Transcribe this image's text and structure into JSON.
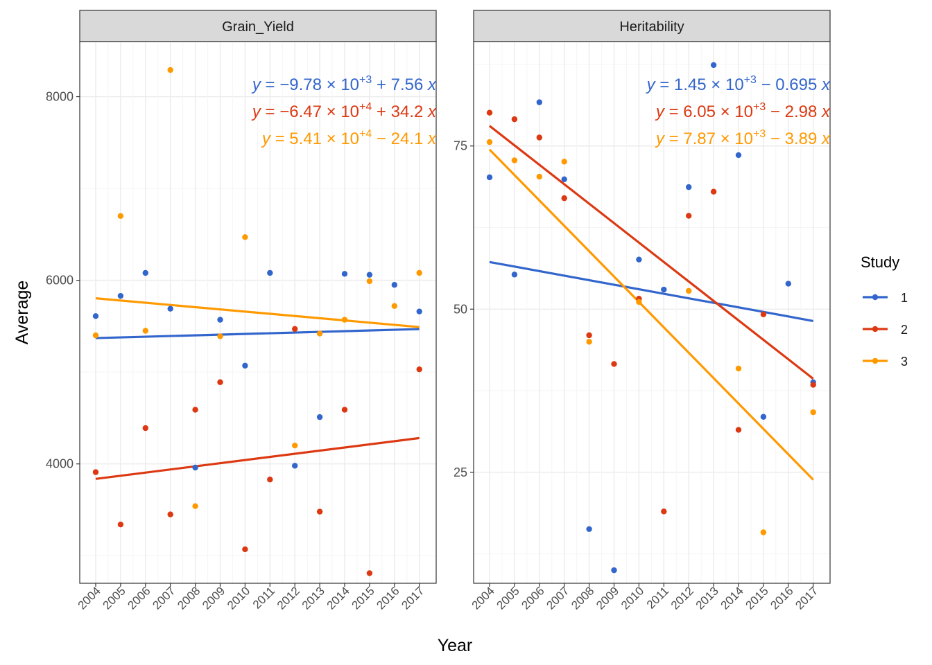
{
  "chart_data": [
    {
      "type": "scatter",
      "facet": "Grain_Yield",
      "years": [
        2004,
        2005,
        2006,
        2007,
        2008,
        2009,
        2010,
        2011,
        2012,
        2013,
        2014,
        2015,
        2016,
        2017
      ],
      "ylim": [
        2700,
        8600
      ],
      "yticks": [
        4000,
        6000,
        8000
      ],
      "series": [
        {
          "name": "1",
          "color": "#3366CC",
          "points": [
            [
              2004,
              5610
            ],
            [
              2005,
              5830
            ],
            [
              2006,
              6080
            ],
            [
              2007,
              5690
            ],
            [
              2008,
              3960
            ],
            [
              2009,
              5570
            ],
            [
              2010,
              5070
            ],
            [
              2011,
              6080
            ],
            [
              2012,
              3980
            ],
            [
              2013,
              4510
            ],
            [
              2014,
              6070
            ],
            [
              2015,
              6060
            ],
            [
              2016,
              5950
            ],
            [
              2017,
              5660
            ]
          ],
          "fit": {
            "intercept": -9780,
            "slope": 7.56
          },
          "equation": {
            "y": "y",
            "eq": " = ",
            "neg": "−",
            "coef": "9.78",
            "times": " × 10",
            "exp": "+3",
            "op": " + ",
            "slope": "7.56 ",
            "x": "x"
          }
        },
        {
          "name": "2",
          "color": "#DC3912",
          "points": [
            [
              2004,
              3910
            ],
            [
              2005,
              3340
            ],
            [
              2006,
              4390
            ],
            [
              2007,
              3450
            ],
            [
              2008,
              4590
            ],
            [
              2009,
              4890
            ],
            [
              2010,
              3070
            ],
            [
              2011,
              3830
            ],
            [
              2012,
              5470
            ],
            [
              2013,
              3480
            ],
            [
              2014,
              4590
            ],
            [
              2015,
              2810
            ],
            [
              2017,
              5030
            ]
          ],
          "fit": {
            "intercept": -64700,
            "slope": 34.2
          },
          "equation": {
            "y": "y",
            "eq": " = ",
            "neg": "−",
            "coef": "6.47",
            "times": " × 10",
            "exp": "+4",
            "op": " + ",
            "slope": "34.2 ",
            "x": "x"
          }
        },
        {
          "name": "3",
          "color": "#FF9900",
          "points": [
            [
              2004,
              5400
            ],
            [
              2005,
              6700
            ],
            [
              2006,
              5450
            ],
            [
              2007,
              8290
            ],
            [
              2008,
              3540
            ],
            [
              2009,
              5390
            ],
            [
              2010,
              6470
            ],
            [
              2012,
              4200
            ],
            [
              2013,
              5420
            ],
            [
              2014,
              5570
            ],
            [
              2015,
              5990
            ],
            [
              2016,
              5720
            ],
            [
              2017,
              6080
            ]
          ],
          "fit": {
            "intercept": 54100,
            "slope": -24.1
          },
          "equation": {
            "y": "y",
            "eq": " = ",
            "neg": "",
            "coef": "5.41",
            "times": " × 10",
            "exp": "+4",
            "op": " − ",
            "slope": "24.1 ",
            "x": "x"
          }
        }
      ]
    },
    {
      "type": "scatter",
      "facet": "Heritability",
      "years": [
        2004,
        2005,
        2006,
        2007,
        2008,
        2009,
        2010,
        2011,
        2012,
        2013,
        2014,
        2015,
        2016,
        2017
      ],
      "ylim": [
        8,
        91
      ],
      "yticks": [
        25,
        50,
        75
      ],
      "series": [
        {
          "name": "1",
          "color": "#3366CC",
          "points": [
            [
              2004,
              70.2
            ],
            [
              2005,
              55.3
            ],
            [
              2006,
              81.7
            ],
            [
              2007,
              69.9
            ],
            [
              2008,
              16.3
            ],
            [
              2009,
              10.0
            ],
            [
              2010,
              57.6
            ],
            [
              2011,
              53.0
            ],
            [
              2012,
              68.7
            ],
            [
              2013,
              87.4
            ],
            [
              2014,
              73.6
            ],
            [
              2015,
              33.5
            ],
            [
              2016,
              53.9
            ],
            [
              2017,
              38.8
            ]
          ],
          "fit": {
            "intercept": 1450,
            "slope": -0.695
          },
          "equation": {
            "y": "y",
            "eq": " = ",
            "neg": "",
            "coef": "1.45",
            "times": " × 10",
            "exp": "+3",
            "op": " − ",
            "slope": "0.695 ",
            "x": "x"
          }
        },
        {
          "name": "2",
          "color": "#DC3912",
          "points": [
            [
              2004,
              80.1
            ],
            [
              2005,
              79.1
            ],
            [
              2006,
              76.3
            ],
            [
              2007,
              67.0
            ],
            [
              2008,
              46.0
            ],
            [
              2009,
              41.6
            ],
            [
              2010,
              51.6
            ],
            [
              2011,
              19.0
            ],
            [
              2012,
              64.3
            ],
            [
              2013,
              68.0
            ],
            [
              2014,
              31.5
            ],
            [
              2015,
              49.2
            ],
            [
              2017,
              38.4
            ]
          ],
          "fit": {
            "intercept": 6050,
            "slope": -2.98
          },
          "equation": {
            "y": "y",
            "eq": " = ",
            "neg": "",
            "coef": "6.05",
            "times": " × 10",
            "exp": "+3",
            "op": " − ",
            "slope": "2.98 ",
            "x": "x"
          }
        },
        {
          "name": "3",
          "color": "#FF9900",
          "points": [
            [
              2004,
              75.6
            ],
            [
              2005,
              72.8
            ],
            [
              2006,
              70.3
            ],
            [
              2007,
              72.6
            ],
            [
              2008,
              45.0
            ],
            [
              2010,
              51.1
            ],
            [
              2012,
              52.8
            ],
            [
              2014,
              40.9
            ],
            [
              2015,
              15.8
            ],
            [
              2017,
              34.2
            ]
          ],
          "fit": {
            "intercept": 7870,
            "slope": -3.89
          },
          "equation": {
            "y": "y",
            "eq": " = ",
            "neg": "",
            "coef": "7.87",
            "times": " × 10",
            "exp": "+3",
            "op": " − ",
            "slope": "3.89 ",
            "x": "x"
          }
        }
      ]
    }
  ],
  "xlabel": "Year",
  "ylabel": "Average",
  "legend": {
    "title": "Study",
    "entries": [
      "1",
      "2",
      "3"
    ],
    "colors": [
      "#3366CC",
      "#DC3912",
      "#FF9900"
    ],
    "position": "right"
  },
  "style": {
    "panel_border": "#333333",
    "strip_fill": "#D9D9D9",
    "grid_major": "#EBEBEB",
    "grid_minor": "#F5F5F5"
  }
}
